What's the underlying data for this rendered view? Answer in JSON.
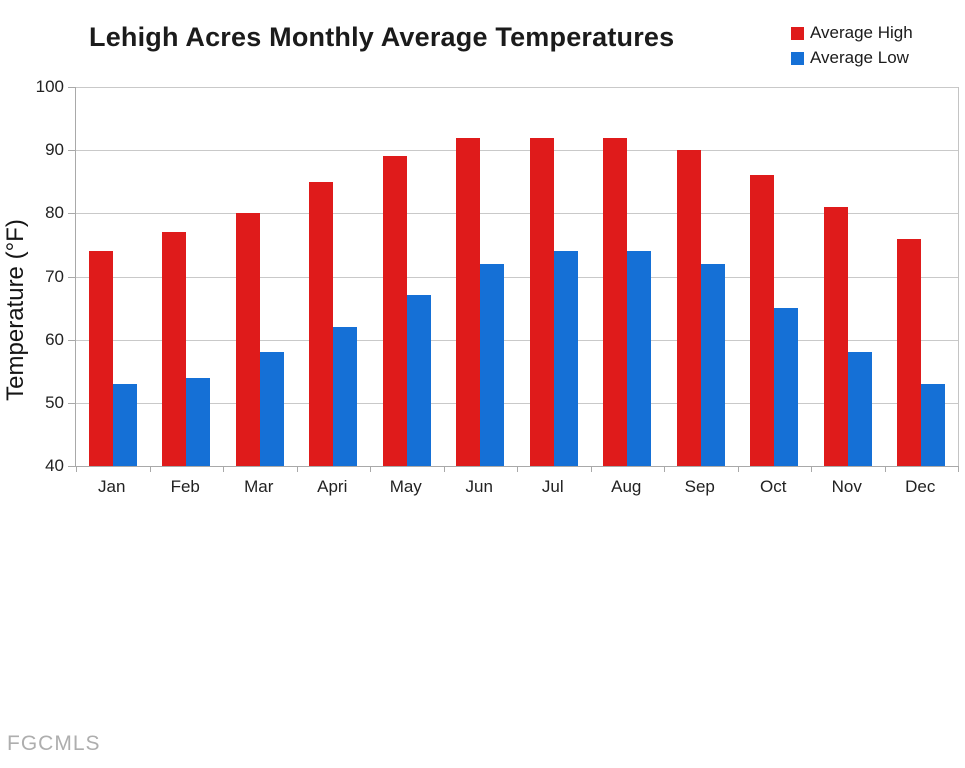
{
  "title": "Lehigh Acres Monthly Average Temperatures",
  "watermark": "FGCMLS",
  "chart_data": {
    "type": "bar",
    "title": "Lehigh Acres Monthly Average Temperatures",
    "categories": [
      "Jan",
      "Feb",
      "Mar",
      "Apri",
      "May",
      "Jun",
      "Jul",
      "Aug",
      "Sep",
      "Oct",
      "Nov",
      "Dec"
    ],
    "series": [
      {
        "name": "Average High",
        "color": "#df1b1b",
        "values": [
          74,
          77,
          80,
          85,
          89,
          92,
          92,
          92,
          90,
          86,
          81,
          76
        ]
      },
      {
        "name": "Average Low",
        "color": "#1570d6",
        "values": [
          53,
          54,
          58,
          62,
          67,
          72,
          74,
          74,
          72,
          65,
          58,
          53
        ]
      }
    ],
    "xlabel": "",
    "ylabel": "Temperature (°F)",
    "ylim": [
      40,
      100
    ],
    "ytick_step": 10,
    "grid": true,
    "legend_position": "top-right"
  },
  "colors": {
    "grid": "#c9c9c9",
    "axis": "#a9a9a9",
    "text": "#1b1b1b",
    "watermark": "#aeaeae",
    "background": "#ffffff"
  }
}
